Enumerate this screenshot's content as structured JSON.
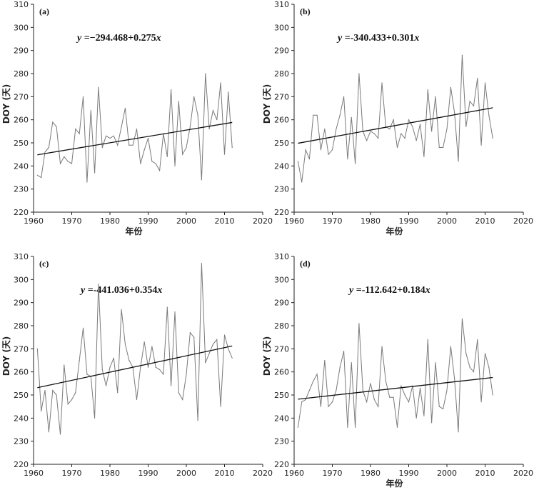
{
  "chart_data": [
    {
      "type": "line",
      "panel_label": "(a)",
      "equation": {
        "prefix": "y",
        "rest": " =−294.468+0.275",
        "suffix": "x"
      },
      "xlabel": "年份",
      "ylabel": "DOY (天)",
      "xlim": [
        1960,
        2020
      ],
      "ylim": [
        220,
        310
      ],
      "xticks": [
        "1960",
        "1970",
        "1980",
        "1990",
        "2000",
        "2010",
        "2020"
      ],
      "yticks": [
        "220",
        "230",
        "240",
        "250",
        "260",
        "270",
        "280",
        "290",
        "300",
        "310"
      ],
      "trend": {
        "intercept": -294.468,
        "slope": 0.275,
        "x_range": [
          1961,
          2012
        ]
      },
      "x": [
        1961,
        1962,
        1963,
        1964,
        1965,
        1966,
        1967,
        1968,
        1969,
        1970,
        1971,
        1972,
        1973,
        1974,
        1975,
        1976,
        1977,
        1978,
        1979,
        1980,
        1981,
        1982,
        1983,
        1984,
        1985,
        1986,
        1987,
        1988,
        1989,
        1990,
        1991,
        1992,
        1993,
        1994,
        1995,
        1996,
        1997,
        1998,
        1999,
        2000,
        2001,
        2002,
        2003,
        2004,
        2005,
        2006,
        2007,
        2008,
        2009,
        2010,
        2011,
        2012
      ],
      "values": [
        236,
        235,
        246,
        248,
        259,
        257,
        241,
        244,
        242,
        241,
        256,
        254,
        270,
        233,
        264,
        237,
        274,
        248,
        253,
        252,
        253,
        249,
        257,
        265,
        249,
        249,
        256,
        241,
        247,
        252,
        242,
        241,
        238,
        254,
        244,
        273,
        240,
        268,
        245,
        248,
        257,
        270,
        262,
        234,
        280,
        256,
        264,
        260,
        276,
        245,
        272,
        248
      ]
    },
    {
      "type": "line",
      "panel_label": "(b)",
      "equation": {
        "prefix": "y",
        "rest": " =-340.433+0.301",
        "suffix": "x"
      },
      "xlabel": "年份",
      "ylabel": "DOY (天)",
      "xlim": [
        1960,
        2020
      ],
      "ylim": [
        220,
        310
      ],
      "xticks": [
        "1960",
        "1970",
        "1980",
        "1990",
        "2000",
        "2010",
        "2020"
      ],
      "yticks": [
        "220",
        "230",
        "240",
        "250",
        "260",
        "270",
        "280",
        "290",
        "300",
        "310"
      ],
      "trend": {
        "intercept": -340.433,
        "slope": 0.301,
        "x_range": [
          1961,
          2012
        ]
      },
      "x": [
        1961,
        1962,
        1963,
        1964,
        1965,
        1966,
        1967,
        1968,
        1969,
        1970,
        1971,
        1972,
        1973,
        1974,
        1975,
        1976,
        1977,
        1978,
        1979,
        1980,
        1981,
        1982,
        1983,
        1984,
        1985,
        1986,
        1987,
        1988,
        1989,
        1990,
        1991,
        1992,
        1993,
        1994,
        1995,
        1996,
        1997,
        1998,
        1999,
        2000,
        2001,
        2002,
        2003,
        2004,
        2005,
        2006,
        2007,
        2008,
        2009,
        2010,
        2011,
        2012
      ],
      "values": [
        242,
        233,
        247,
        243,
        262,
        262,
        247,
        256,
        245,
        247,
        256,
        262,
        270,
        243,
        261,
        241,
        280,
        255,
        251,
        255,
        254,
        252,
        276,
        257,
        256,
        260,
        248,
        254,
        252,
        260,
        257,
        251,
        258,
        244,
        273,
        255,
        270,
        248,
        248,
        256,
        274,
        263,
        242,
        288,
        257,
        268,
        266,
        278,
        249,
        276,
        262,
        252
      ]
    },
    {
      "type": "line",
      "panel_label": "(c)",
      "equation": {
        "prefix": "y",
        "rest": " =-441.036+0.354",
        "suffix": "x"
      },
      "xlabel": "",
      "ylabel": "DOY (天)",
      "xlim": [
        1960,
        2020
      ],
      "ylim": [
        220,
        310
      ],
      "xticks": [
        "1960",
        "1970",
        "1980",
        "1990",
        "2000",
        "2010",
        "2020"
      ],
      "yticks": [
        "220",
        "230",
        "240",
        "250",
        "260",
        "270",
        "280",
        "290",
        "300",
        "310"
      ],
      "trend": {
        "intercept": -441.036,
        "slope": 0.354,
        "x_range": [
          1961,
          2012
        ]
      },
      "x": [
        1961,
        1962,
        1963,
        1964,
        1965,
        1966,
        1967,
        1968,
        1969,
        1970,
        1971,
        1972,
        1973,
        1974,
        1975,
        1976,
        1977,
        1978,
        1979,
        1980,
        1981,
        1982,
        1983,
        1984,
        1985,
        1986,
        1987,
        1988,
        1989,
        1990,
        1991,
        1992,
        1993,
        1994,
        1995,
        1996,
        1997,
        1998,
        1999,
        2000,
        2001,
        2002,
        2003,
        2004,
        2005,
        2006,
        2007,
        2008,
        2009,
        2010,
        2011,
        2012
      ],
      "values": [
        270,
        243,
        252,
        234,
        252,
        250,
        233,
        263,
        246,
        248,
        251,
        265,
        279,
        259,
        258,
        240,
        298,
        261,
        254,
        262,
        266,
        251,
        287,
        272,
        265,
        262,
        248,
        262,
        273,
        262,
        271,
        262,
        261,
        259,
        288,
        254,
        286,
        251,
        248,
        259,
        277,
        275,
        239,
        307,
        264,
        268,
        272,
        274,
        245,
        276,
        270,
        266
      ]
    },
    {
      "type": "line",
      "panel_label": "(d)",
      "equation": {
        "prefix": "y",
        "rest": " =-112.642+0.184",
        "suffix": "x"
      },
      "xlabel": "年份",
      "ylabel": "DOY (天)",
      "xlim": [
        1960,
        2020
      ],
      "ylim": [
        220,
        310
      ],
      "xticks": [
        "1960",
        "1970",
        "1980",
        "1990",
        "2000",
        "2010",
        "2020"
      ],
      "yticks": [
        "220",
        "230",
        "240",
        "250",
        "260",
        "270",
        "280",
        "290",
        "300",
        "310"
      ],
      "trend": {
        "intercept": -112.642,
        "slope": 0.184,
        "x_range": [
          1961,
          2012
        ]
      },
      "x": [
        1961,
        1962,
        1963,
        1964,
        1965,
        1966,
        1967,
        1968,
        1969,
        1970,
        1971,
        1972,
        1973,
        1974,
        1975,
        1976,
        1977,
        1978,
        1979,
        1980,
        1981,
        1982,
        1983,
        1984,
        1985,
        1986,
        1987,
        1988,
        1989,
        1990,
        1991,
        1992,
        1993,
        1994,
        1995,
        1996,
        1997,
        1998,
        1999,
        2000,
        2001,
        2002,
        2003,
        2004,
        2005,
        2006,
        2007,
        2008,
        2009,
        2010,
        2011,
        2012
      ],
      "values": [
        236,
        247,
        248,
        252,
        256,
        259,
        245,
        265,
        245,
        247,
        252,
        262,
        269,
        236,
        264,
        236,
        281,
        252,
        247,
        255,
        248,
        245,
        271,
        256,
        249,
        249,
        236,
        254,
        250,
        247,
        254,
        240,
        253,
        241,
        274,
        238,
        264,
        245,
        244,
        252,
        271,
        257,
        234,
        283,
        268,
        262,
        260,
        274,
        247,
        268,
        262,
        250
      ]
    }
  ]
}
